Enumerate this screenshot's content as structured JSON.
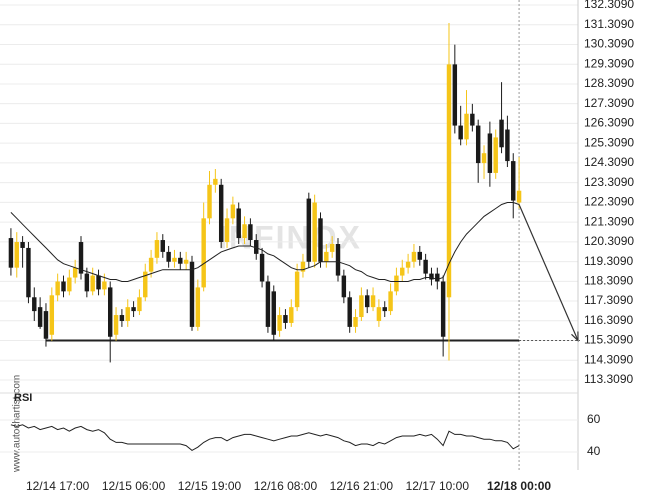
{
  "chart_data": {
    "type": "candlestick",
    "watermark": "INFINOX",
    "source": "www.autochartist.com",
    "categories": [
      null,
      null,
      null,
      null,
      null,
      null,
      null,
      null,
      "12/14 17:00",
      null,
      null,
      null,
      null,
      null,
      null,
      null,
      null,
      null,
      null,
      null,
      null,
      "12/15 06:00",
      null,
      null,
      null,
      null,
      null,
      null,
      null,
      null,
      null,
      null,
      null,
      null,
      "12/15 19:00",
      null,
      null,
      null,
      null,
      null,
      null,
      null,
      null,
      null,
      null,
      null,
      null,
      "12/16 08:00",
      null,
      null,
      null,
      null,
      null,
      null,
      null,
      null,
      null,
      null,
      null,
      null,
      "12/16 21:00",
      null,
      null,
      null,
      null,
      null,
      null,
      null,
      null,
      null,
      null,
      null,
      null,
      "12/17 10:00",
      null,
      null,
      null,
      null,
      null,
      null,
      null,
      null,
      null,
      null,
      null,
      null,
      null,
      "12/18 00:00"
    ],
    "open": [
      120.5,
      119.0,
      120.3,
      120.0,
      117.5,
      117.0,
      116.8,
      115.6,
      117.6,
      118.3,
      117.8,
      118.5,
      120.3,
      118.7,
      117.8,
      118.6,
      117.9,
      118.0,
      115.6,
      116.6,
      116.3,
      117.0,
      116.8,
      117.5,
      118.8,
      119.5,
      120.4,
      119.8,
      119.3,
      119.5,
      119.2,
      119.3,
      116.0,
      118.0,
      121.5,
      123.2,
      123.2,
      120.3,
      121.5,
      122.0,
      120.5,
      121.2,
      120.4,
      119.7,
      118.3,
      117.8,
      115.8,
      116.6,
      116.2,
      117.0,
      118.8,
      122.5,
      119.3,
      121.5,
      119.3,
      119.8,
      120.2,
      118.6,
      117.5,
      116.0,
      116.5,
      117.6,
      117.0,
      116.3,
      117.0,
      116.8,
      117.8,
      118.6,
      119.0,
      119.3,
      119.8,
      119.4,
      118.7,
      118.7,
      118.3,
      117.5,
      129.3,
      126.2,
      125.5,
      126.8,
      126.2,
      124.3,
      125.8,
      123.8,
      126.5,
      126.0,
      124.4,
      122.3
    ],
    "high": [
      121.0,
      120.8,
      120.6,
      120.3,
      118.0,
      117.5,
      117.2,
      118.0,
      118.7,
      118.6,
      118.9,
      119.4,
      120.6,
      119.0,
      119.0,
      118.9,
      118.7,
      118.3,
      117.0,
      116.9,
      117.4,
      117.3,
      117.9,
      119.2,
      119.9,
      120.8,
      120.7,
      120.1,
      119.9,
      119.8,
      119.8,
      119.6,
      118.4,
      122.3,
      123.9,
      124.0,
      123.5,
      122.0,
      122.6,
      122.3,
      121.6,
      121.5,
      120.7,
      120.0,
      118.6,
      118.1,
      117.0,
      116.9,
      117.4,
      119.2,
      119.7,
      122.8,
      122.7,
      121.8,
      120.2,
      120.6,
      120.5,
      118.9,
      117.8,
      116.9,
      118.0,
      117.9,
      118.0,
      117.4,
      117.3,
      118.2,
      119.0,
      119.4,
      119.7,
      120.2,
      120.1,
      119.7,
      119.0,
      119.0,
      118.6,
      131.4,
      130.3,
      127.2,
      128.0,
      127.3,
      126.5,
      125.2,
      126.4,
      126.0,
      128.4,
      126.7,
      124.8,
      124.6
    ],
    "low": [
      118.6,
      118.5,
      119.0,
      117.2,
      116.3,
      115.9,
      115.0,
      115.3,
      117.3,
      117.5,
      117.6,
      118.2,
      118.4,
      117.5,
      117.6,
      117.6,
      117.6,
      114.2,
      115.3,
      116.0,
      116.0,
      116.5,
      116.6,
      117.3,
      118.5,
      119.2,
      119.5,
      119.0,
      119.0,
      118.9,
      118.9,
      115.8,
      115.8,
      117.8,
      121.2,
      122.8,
      120.0,
      120.0,
      121.2,
      120.2,
      120.2,
      120.1,
      119.4,
      118.0,
      115.7,
      115.3,
      115.5,
      115.9,
      116.0,
      116.8,
      118.5,
      119.0,
      119.0,
      119.0,
      119.0,
      119.5,
      118.3,
      117.2,
      115.7,
      115.7,
      116.3,
      116.7,
      116.8,
      116.0,
      116.5,
      116.6,
      117.6,
      118.3,
      118.7,
      119.0,
      119.1,
      118.4,
      118.1,
      117.9,
      114.5,
      114.3,
      125.8,
      125.2,
      125.2,
      125.9,
      123.3,
      123.5,
      123.1,
      123.5,
      124.8,
      124.1,
      121.5,
      122.0
    ],
    "close": [
      119.0,
      120.3,
      120.0,
      117.5,
      116.8,
      116.0,
      115.4,
      117.6,
      118.3,
      117.8,
      118.5,
      119.0,
      118.7,
      117.8,
      118.6,
      117.9,
      118.3,
      115.5,
      116.6,
      116.3,
      117.0,
      116.8,
      117.5,
      118.8,
      119.5,
      120.4,
      119.8,
      119.3,
      119.5,
      119.2,
      119.4,
      116.0,
      118.0,
      121.5,
      123.2,
      123.5,
      120.3,
      121.5,
      122.2,
      120.5,
      121.2,
      120.4,
      119.7,
      118.3,
      116.0,
      115.6,
      116.6,
      116.2,
      117.0,
      118.8,
      119.3,
      119.3,
      122.3,
      119.3,
      119.8,
      120.2,
      118.6,
      117.5,
      116.0,
      116.5,
      117.6,
      117.0,
      117.6,
      117.0,
      116.8,
      117.8,
      118.6,
      119.0,
      119.3,
      119.8,
      119.4,
      118.7,
      118.4,
      118.3,
      115.5,
      129.3,
      126.2,
      125.5,
      126.8,
      126.2,
      124.3,
      124.8,
      123.8,
      125.6,
      125.1,
      124.4,
      122.4,
      122.9
    ],
    "up_color": "#f5c518",
    "down_color": "#1a1a1a",
    "moving_average": [
      121.8,
      121.5,
      121.2,
      120.9,
      120.6,
      120.3,
      120.0,
      119.7,
      119.4,
      119.2,
      119.1,
      119.0,
      118.9,
      118.8,
      118.7,
      118.6,
      118.5,
      118.4,
      118.4,
      118.3,
      118.3,
      118.4,
      118.5,
      118.6,
      118.7,
      118.8,
      118.9,
      118.9,
      118.9,
      118.9,
      118.9,
      118.9,
      119.0,
      119.2,
      119.4,
      119.6,
      119.8,
      119.9,
      120.0,
      120.1,
      120.1,
      120.1,
      120.0,
      119.9,
      119.7,
      119.6,
      119.4,
      119.2,
      119.0,
      118.9,
      118.9,
      119.0,
      119.1,
      119.3,
      119.3,
      119.3,
      119.3,
      119.2,
      119.1,
      118.9,
      118.8,
      118.6,
      118.5,
      118.4,
      118.4,
      118.3,
      118.3,
      118.3,
      118.3,
      118.4,
      118.4,
      118.5,
      118.5,
      118.4,
      118.5,
      119.2,
      119.8,
      120.3,
      120.7,
      121.0,
      121.3,
      121.6,
      121.8,
      122.0,
      122.2,
      122.3,
      122.3,
      122.2
    ],
    "line_color": "#222222",
    "support_level": 115.309,
    "ylim": [
      112.853,
      132.461
    ],
    "yticks": [
      {
        "value": 113.309,
        "label": "113.3090"
      },
      {
        "value": 114.309,
        "label": "114.3090"
      },
      {
        "value": 115.309,
        "label": "115.3090"
      },
      {
        "value": 116.309,
        "label": "116.3090"
      },
      {
        "value": 117.309,
        "label": "117.3090"
      },
      {
        "value": 118.309,
        "label": "118.3090"
      },
      {
        "value": 119.309,
        "label": "119.3090"
      },
      {
        "value": 120.309,
        "label": "120.3090"
      },
      {
        "value": 121.309,
        "label": "121.3090"
      },
      {
        "value": 122.309,
        "label": "122.3090"
      },
      {
        "value": 123.309,
        "label": "123.3090"
      },
      {
        "value": 124.309,
        "label": "124.3090"
      },
      {
        "value": 125.309,
        "label": "125.3090"
      },
      {
        "value": 126.309,
        "label": "126.3090"
      },
      {
        "value": 127.309,
        "label": "127.3090"
      },
      {
        "value": 128.309,
        "label": "128.3090"
      },
      {
        "value": 129.309,
        "label": "129.3090"
      },
      {
        "value": 130.309,
        "label": "130.3090"
      },
      {
        "value": 131.309,
        "label": "131.3090"
      },
      {
        "value": 132.309,
        "label": "132.3090"
      }
    ],
    "grid": true,
    "rsi": {
      "label": "RSI",
      "values": [
        57,
        56,
        57,
        55,
        56,
        54,
        55,
        56,
        54,
        55,
        53,
        55,
        56,
        54,
        53,
        54,
        52,
        48,
        46,
        46,
        45,
        45,
        45,
        45,
        45,
        45,
        45,
        45,
        45,
        45,
        44,
        41,
        43,
        46,
        48,
        49,
        49,
        47,
        49,
        50,
        51,
        51,
        50,
        49,
        48,
        47,
        48,
        49,
        50,
        50,
        51,
        52,
        51,
        50,
        51,
        50,
        49,
        47,
        46,
        44,
        45,
        45,
        44,
        46,
        45,
        47,
        49,
        50,
        50,
        50,
        51,
        50,
        51,
        48,
        44,
        53,
        51,
        51,
        50,
        50,
        49,
        48,
        48,
        47,
        47,
        46,
        42,
        44
      ],
      "ylim": [
        28.75,
        75.6
      ],
      "yticks": [
        40,
        60
      ]
    }
  }
}
